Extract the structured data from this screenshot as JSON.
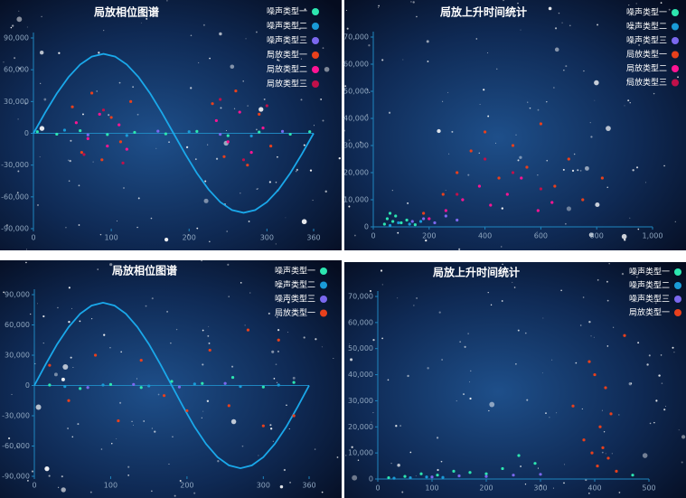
{
  "chart_data": [
    {
      "type": "scatter",
      "title": "局放相位图谱",
      "xlim": [
        0,
        360
      ],
      "xticks": [
        0,
        100,
        200,
        300,
        360
      ],
      "ylim": [
        -90000,
        90000
      ],
      "yticks": [
        {
          "value": -90000,
          "label": "-90,000"
        },
        {
          "value": -60000,
          "label": "-60,000"
        },
        {
          "value": -30000,
          "label": "-30,000"
        },
        0,
        {
          "value": 30000,
          "label": "30,000"
        },
        {
          "value": 60000,
          "label": "60,000"
        },
        {
          "value": 90000,
          "label": "90,000"
        }
      ],
      "curve": {
        "color": "#1aa8ea",
        "x": [
          0,
          15,
          30,
          45,
          60,
          75,
          90,
          105,
          120,
          135,
          150,
          165,
          180,
          195,
          210,
          225,
          240,
          255,
          270,
          285,
          300,
          315,
          330,
          345,
          360
        ],
        "values": [
          0,
          19411,
          37500,
          53033,
          64952,
          72444,
          75000,
          72444,
          64952,
          53033,
          37500,
          19411,
          0,
          -19411,
          -37500,
          -53033,
          -64952,
          -72444,
          -75000,
          -72444,
          -64952,
          -53033,
          -37500,
          -19411,
          0
        ]
      },
      "series": [
        {
          "name": "噪声类型一",
          "color": "#2de6b0",
          "x": [
            5,
            30,
            60,
            95,
            130,
            170,
            210,
            250,
            290,
            330,
            355
          ],
          "values": [
            1500,
            -800,
            2500,
            -1200,
            900,
            -500,
            1800,
            -2200,
            1200,
            -900,
            1500
          ]
        },
        {
          "name": "噪声类型二",
          "color": "#1a9bd7",
          "x": [
            40,
            120,
            200,
            280
          ],
          "values": [
            3000,
            -2000,
            1500,
            -2500
          ]
        },
        {
          "name": "噪声类型三",
          "color": "#7b68ee",
          "x": [
            70,
            160,
            240,
            320
          ],
          "values": [
            -1500,
            2000,
            -1000,
            1800
          ]
        },
        {
          "name": "局放类型一",
          "color": "#e8401c",
          "x": [
            50,
            62,
            75,
            88,
            100,
            112,
            125,
            230,
            245,
            260,
            275,
            290,
            305
          ],
          "values": [
            25000,
            -18000,
            38000,
            -25000,
            15000,
            -8000,
            30000,
            28000,
            -22000,
            40000,
            -30000,
            18000,
            -12000
          ]
        },
        {
          "name": "局放类型二",
          "color": "#ff1493",
          "x": [
            55,
            70,
            85,
            95,
            110,
            120,
            235,
            250,
            265,
            280,
            295
          ],
          "values": [
            10000,
            -5000,
            18000,
            -12000,
            8000,
            -15000,
            12000,
            -8000,
            20000,
            -18000,
            5000
          ]
        },
        {
          "name": "局放类型三",
          "color": "#c0104a",
          "x": [
            65,
            90,
            115,
            240,
            270,
            300
          ],
          "values": [
            -20000,
            22000,
            -28000,
            32000,
            -25000,
            26000
          ]
        }
      ]
    },
    {
      "type": "scatter",
      "title": "局放上升时间统计",
      "xlim": [
        0,
        1000
      ],
      "xticks": [
        0,
        200,
        400,
        600,
        800,
        {
          "value": 1000,
          "label": "1,000"
        }
      ],
      "ylim": [
        0,
        70000
      ],
      "yticks": [
        0,
        {
          "value": 10000,
          "label": "10,000"
        },
        {
          "value": 20000,
          "label": "20,000"
        },
        {
          "value": 30000,
          "label": "30,000"
        },
        {
          "value": 40000,
          "label": "40,000"
        },
        {
          "value": 50000,
          "label": "50,000"
        },
        {
          "value": 60000,
          "label": "60,000"
        },
        {
          "value": 70000,
          "label": "70,000"
        }
      ],
      "series": [
        {
          "name": "噪声类型一",
          "color": "#2de6b0",
          "x": [
            40,
            50,
            60,
            70,
            80,
            100,
            120,
            150
          ],
          "values": [
            1000,
            3000,
            5000,
            2000,
            4000,
            1500,
            2500,
            800
          ]
        },
        {
          "name": "噪声类型二",
          "color": "#1a9bd7",
          "x": [
            60,
            90,
            130,
            170
          ],
          "values": [
            500,
            1500,
            1000,
            2000
          ]
        },
        {
          "name": "噪声类型三",
          "color": "#7b68ee",
          "x": [
            140,
            180,
            220,
            260,
            300
          ],
          "values": [
            2000,
            3000,
            1500,
            4000,
            2500
          ]
        },
        {
          "name": "局放类型一",
          "color": "#e8401c",
          "x": [
            180,
            250,
            300,
            350,
            400,
            450,
            500,
            550,
            600,
            650,
            700,
            750,
            820
          ],
          "values": [
            5000,
            12000,
            20000,
            28000,
            35000,
            18000,
            30000,
            22000,
            38000,
            15000,
            25000,
            10000,
            18000
          ]
        },
        {
          "name": "局放类型二",
          "color": "#ff1493",
          "x": [
            200,
            260,
            320,
            380,
            420,
            480,
            530,
            590,
            640
          ],
          "values": [
            3000,
            6000,
            10000,
            15000,
            8000,
            12000,
            18000,
            6000,
            9000
          ]
        },
        {
          "name": "局放类型三",
          "color": "#c0104a",
          "x": [
            300,
            400,
            500,
            600
          ],
          "values": [
            12000,
            25000,
            20000,
            14000
          ]
        }
      ]
    },
    {
      "type": "scatter",
      "title": "局放相位图谱",
      "xlim": [
        0,
        360
      ],
      "xticks": [
        0,
        100,
        200,
        300,
        360
      ],
      "ylim": [
        -90000,
        90000
      ],
      "yticks": [
        {
          "value": -90000,
          "label": "-90,000"
        },
        {
          "value": -60000,
          "label": "-60,000"
        },
        {
          "value": -30000,
          "label": "-30,000"
        },
        0,
        {
          "value": 30000,
          "label": "30,000"
        },
        {
          "value": 60000,
          "label": "60,000"
        },
        {
          "value": 90000,
          "label": "90,000"
        }
      ],
      "curve": {
        "color": "#1aa8ea",
        "x": [
          0,
          15,
          30,
          45,
          60,
          75,
          90,
          105,
          120,
          135,
          150,
          165,
          180,
          195,
          210,
          225,
          240,
          255,
          270,
          285,
          300,
          315,
          330,
          345,
          360
        ],
        "values": [
          0,
          21223,
          41000,
          57983,
          71014,
          79206,
          82000,
          79206,
          71014,
          57983,
          41000,
          21223,
          0,
          -21223,
          -41000,
          -57983,
          -71014,
          -79206,
          -82000,
          -79206,
          -71014,
          -57983,
          -41000,
          -21223,
          0
        ]
      },
      "series": [
        {
          "name": "噪声类型一",
          "color": "#2de6b0",
          "x": [
            20,
            60,
            100,
            140,
            180,
            220,
            260,
            300,
            340
          ],
          "values": [
            500,
            -3000,
            1000,
            -2000,
            4000,
            2000,
            8000,
            -1500,
            3000
          ]
        },
        {
          "name": "噪声类型二",
          "color": "#1a9bd7",
          "x": [
            40,
            90,
            150,
            210,
            270,
            320
          ],
          "values": [
            -1000,
            500,
            -500,
            1500,
            -1000,
            500
          ]
        },
        {
          "name": "噪声类型三",
          "color": "#7b68ee",
          "x": [
            70,
            130,
            190,
            250
          ],
          "values": [
            -2000,
            1000,
            -1500,
            2000
          ]
        },
        {
          "name": "局放类型一",
          "color": "#e8401c",
          "x": [
            20,
            45,
            80,
            110,
            140,
            170,
            200,
            230,
            255,
            280,
            300,
            320,
            340
          ],
          "values": [
            20000,
            -15000,
            30000,
            -35000,
            25000,
            -10000,
            -25000,
            35000,
            -20000,
            55000,
            -40000,
            45000,
            -30000
          ]
        }
      ]
    },
    {
      "type": "scatter",
      "title": "局放上升时间统计",
      "xlim": [
        0,
        500
      ],
      "xticks": [
        0,
        100,
        200,
        300,
        400,
        500
      ],
      "ylim": [
        0,
        70000
      ],
      "yticks": [
        0,
        {
          "value": 10000,
          "label": "10,000"
        },
        {
          "value": 20000,
          "label": "20,000"
        },
        {
          "value": 30000,
          "label": "30,000"
        },
        {
          "value": 40000,
          "label": "40,000"
        },
        {
          "value": 50000,
          "label": "50,000"
        },
        {
          "value": 60000,
          "label": "60,000"
        },
        {
          "value": 70000,
          "label": "70,000"
        }
      ],
      "series": [
        {
          "name": "噪声类型一",
          "color": "#2de6b0",
          "x": [
            20,
            50,
            80,
            110,
            140,
            170,
            200,
            230,
            260,
            290,
            470
          ],
          "values": [
            500,
            1000,
            2000,
            1500,
            3000,
            2500,
            2000,
            4000,
            9000,
            6000,
            1500
          ]
        },
        {
          "name": "噪声类型二",
          "color": "#1a9bd7",
          "x": [
            30,
            60,
            90,
            120
          ],
          "values": [
            300,
            500,
            800,
            600
          ]
        },
        {
          "name": "噪声类型三",
          "color": "#7b68ee",
          "x": [
            100,
            150,
            200,
            250,
            300
          ],
          "values": [
            800,
            1200,
            1000,
            1500,
            1800
          ]
        },
        {
          "name": "局放类型一",
          "color": "#e8401c",
          "x": [
            360,
            380,
            390,
            395,
            400,
            405,
            410,
            415,
            420,
            425,
            430,
            440,
            455
          ],
          "values": [
            28000,
            15000,
            45000,
            10000,
            40000,
            5000,
            20000,
            12000,
            35000,
            8000,
            25000,
            3000,
            55000
          ]
        }
      ]
    }
  ]
}
